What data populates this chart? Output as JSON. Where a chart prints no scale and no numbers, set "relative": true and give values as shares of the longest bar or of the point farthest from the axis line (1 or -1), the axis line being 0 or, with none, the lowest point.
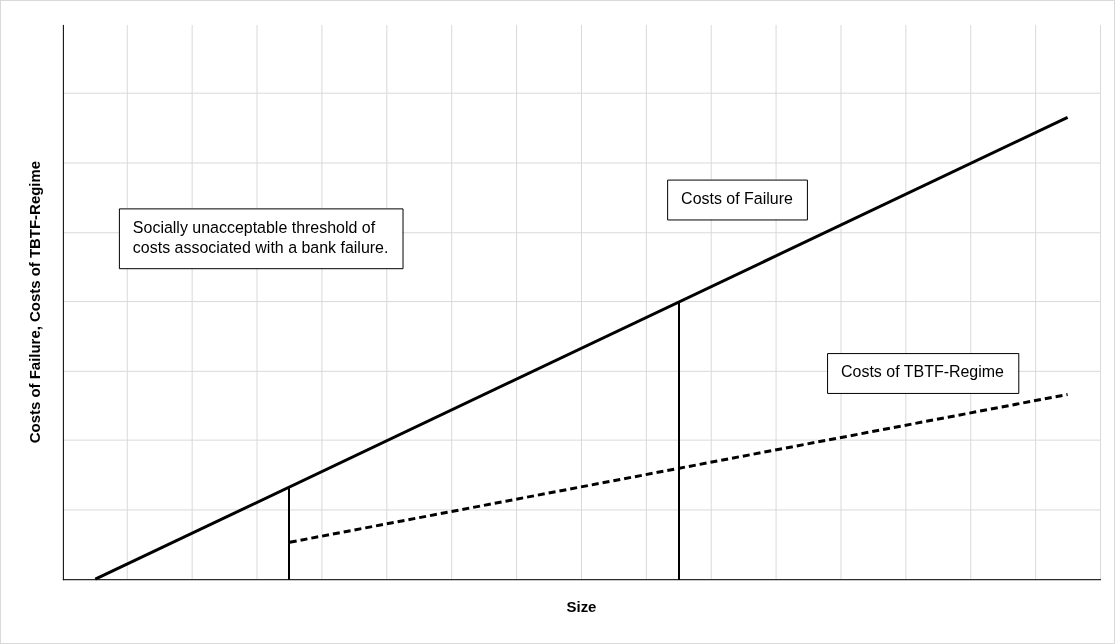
{
  "chart_data": {
    "type": "line",
    "relative": true,
    "xlabel": "Size",
    "ylabel": "Costs of Failure, Costs of TBTF-Regime",
    "grid": true,
    "legend": false,
    "marker": "none",
    "categories": [
      null,
      null,
      null,
      null,
      null,
      null,
      null,
      null,
      null,
      null,
      null,
      null,
      null,
      null,
      null,
      null,
      null,
      null,
      null,
      null,
      null,
      null,
      null,
      null,
      null,
      null,
      null,
      null,
      null,
      null,
      null,
      null,
      null
    ],
    "series": [
      {
        "name": "Costs of Failure",
        "color": "#000000",
        "line_style": "solid",
        "values": [
          null,
          0,
          null,
          null,
          null,
          null,
          null,
          null,
          null,
          null,
          null,
          null,
          null,
          null,
          null,
          null,
          null,
          null,
          null,
          null,
          null,
          null,
          null,
          null,
          null,
          null,
          null,
          null,
          null,
          null,
          null,
          1,
          null
        ]
      },
      {
        "name": "Costs of TBTF-Regime",
        "color": "#000000",
        "line_style": "dashed",
        "values": [
          null,
          null,
          null,
          null,
          null,
          null,
          null,
          0.08,
          null,
          null,
          null,
          null,
          null,
          null,
          null,
          null,
          null,
          null,
          null,
          null,
          null,
          null,
          null,
          null,
          null,
          null,
          null,
          null,
          null,
          null,
          null,
          0.4,
          null
        ]
      }
    ],
    "annotations": [
      "Socially unacceptable threshold of costs associated with a bank failure."
    ]
  }
}
